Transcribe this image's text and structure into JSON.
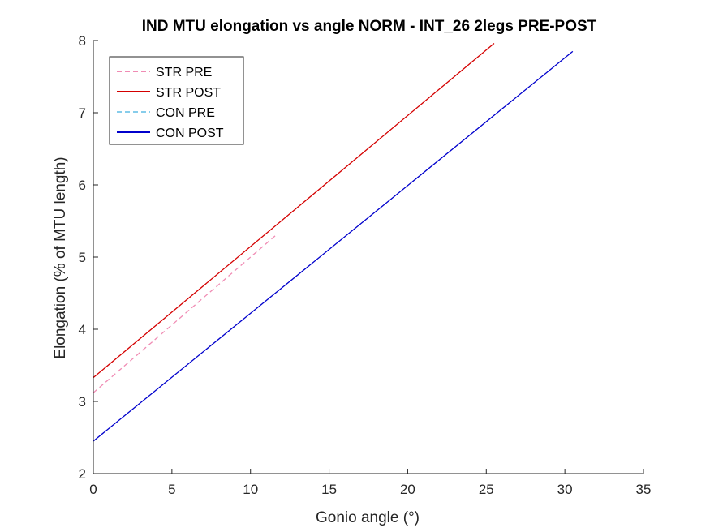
{
  "chart_data": {
    "type": "line",
    "title": "IND MTU elongation vs angle NORM - INT_26 2legs PRE-POST",
    "xlabel": "Gonio angle (°)",
    "ylabel": "Elongation (% of MTU length)",
    "xlim": [
      0,
      35
    ],
    "ylim": [
      2,
      8
    ],
    "xticks": [
      0,
      5,
      10,
      15,
      20,
      25,
      30,
      35
    ],
    "yticks": [
      2,
      3,
      4,
      5,
      6,
      7,
      8
    ],
    "grid": false,
    "legend_position": "top-left",
    "series": [
      {
        "name": "STR PRE",
        "color": "#f08cb4",
        "dash": "dashed",
        "x": [
          0,
          11.6
        ],
        "y": [
          3.12,
          5.3
        ]
      },
      {
        "name": "STR POST",
        "color": "#d40000",
        "dash": "solid",
        "x": [
          0,
          25.5
        ],
        "y": [
          3.33,
          7.96
        ]
      },
      {
        "name": "CON PRE",
        "color": "#87cdeb",
        "dash": "dashed",
        "x": [],
        "y": []
      },
      {
        "name": "CON POST",
        "color": "#0000cc",
        "dash": "solid",
        "x": [
          0,
          30.5
        ],
        "y": [
          2.45,
          7.85
        ]
      }
    ]
  }
}
